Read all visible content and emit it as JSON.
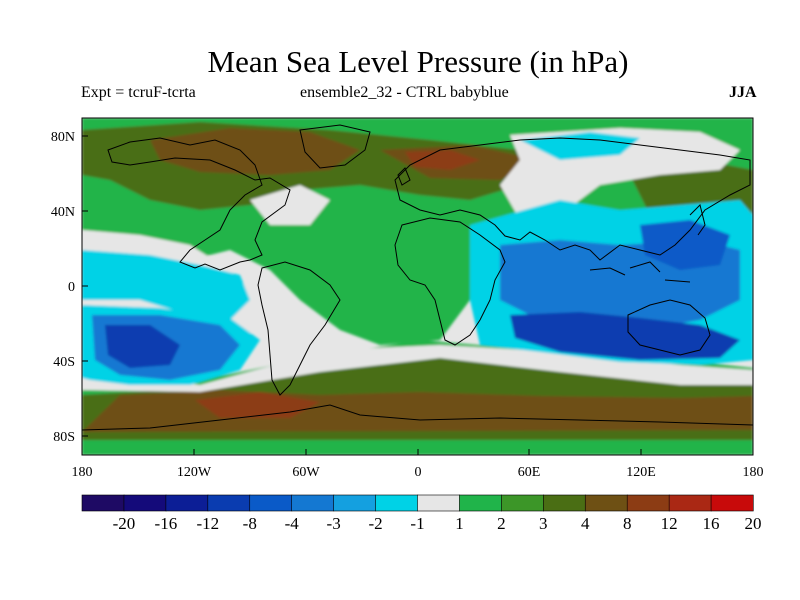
{
  "title": "Mean Sea Level Pressure (in hPa)",
  "subtitle_left": "Expt = tcruF-tcrta",
  "subtitle_center": "ensemble2_32 - CTRL babyblue",
  "subtitle_right": "JJA",
  "map": {
    "projection": "cylindrical-equidistant",
    "lon_range": [
      -180,
      180
    ],
    "lat_range": [
      -90,
      90
    ],
    "x_ticks": [
      "180",
      "120W",
      "60W",
      "0",
      "60E",
      "120E",
      "180"
    ],
    "y_ticks": [
      "80N",
      "40N",
      "0",
      "40S",
      "80S"
    ],
    "features": [
      "coastlines"
    ]
  },
  "colorbar": {
    "labels": [
      "-20",
      "-16",
      "-12",
      "-8",
      "-4",
      "-3",
      "-2",
      "-1",
      "1",
      "2",
      "3",
      "4",
      "8",
      "12",
      "16",
      "20"
    ],
    "colors": [
      "#1e0a64",
      "#140a7a",
      "#0c1e96",
      "#0a3cb0",
      "#0a5ac8",
      "#1478d2",
      "#14a0e0",
      "#00d2e6",
      "#e6e6e6",
      "#20b44a",
      "#3c9628",
      "#4a6e14",
      "#6e5014",
      "#8c3c14",
      "#aa2814",
      "#c80a0a"
    ]
  },
  "colors": {
    "background": "#ffffff",
    "coastline": "#000000",
    "frame": "#000000"
  }
}
